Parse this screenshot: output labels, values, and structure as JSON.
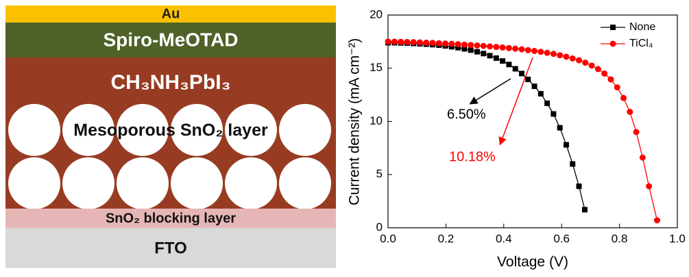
{
  "diagram": {
    "layers": [
      "Au",
      "Spiro-MeOTAD",
      "CH₃NH₃PbI₃",
      "Mesoporous SnO₂ layer",
      "SnO₂ blocking layer",
      "FTO"
    ]
  },
  "chart_data": {
    "type": "line",
    "xlabel": "Voltage (V)",
    "ylabel": "Current density (mA cm⁻²)",
    "xlim": [
      0,
      1
    ],
    "ylim": [
      0,
      20
    ],
    "xticks": [
      {
        "value": 0,
        "label": "0.0"
      },
      0.2,
      0.4,
      0.6,
      0.8,
      {
        "value": 1,
        "label": "1.0"
      }
    ],
    "yticks": [
      0,
      5,
      10,
      15,
      20
    ],
    "legend": "upper right",
    "series": [
      {
        "name": "None",
        "color": "#000000",
        "marker": "square",
        "x": [
          0,
          0.022,
          0.044,
          0.066,
          0.088,
          0.11,
          0.132,
          0.154,
          0.176,
          0.198,
          0.22,
          0.242,
          0.264,
          0.286,
          0.308,
          0.33,
          0.352,
          0.374,
          0.396,
          0.418,
          0.44,
          0.462,
          0.484,
          0.506,
          0.528,
          0.55,
          0.572,
          0.594,
          0.616,
          0.638,
          0.66,
          0.68
        ],
        "values": [
          17.4,
          17.4,
          17.38,
          17.36,
          17.33,
          17.3,
          17.26,
          17.22,
          17.17,
          17.1,
          17.02,
          16.93,
          16.82,
          16.7,
          16.55,
          16.38,
          16.18,
          15.95,
          15.68,
          15.35,
          14.95,
          14.5,
          13.95,
          13.3,
          12.6,
          11.7,
          10.7,
          9.4,
          7.8,
          6.0,
          3.9,
          1.7
        ]
      },
      {
        "name": "TiCl₄",
        "color": "#ff0000",
        "marker": "circle",
        "x": [
          0,
          0.022,
          0.044,
          0.066,
          0.088,
          0.11,
          0.132,
          0.154,
          0.176,
          0.198,
          0.22,
          0.242,
          0.264,
          0.286,
          0.308,
          0.33,
          0.352,
          0.374,
          0.396,
          0.418,
          0.44,
          0.462,
          0.484,
          0.506,
          0.528,
          0.55,
          0.572,
          0.594,
          0.616,
          0.638,
          0.66,
          0.682,
          0.704,
          0.726,
          0.748,
          0.77,
          0.792,
          0.814,
          0.836,
          0.858,
          0.88,
          0.902,
          0.93
        ],
        "values": [
          17.5,
          17.5,
          17.48,
          17.47,
          17.45,
          17.43,
          17.4,
          17.38,
          17.35,
          17.32,
          17.3,
          17.26,
          17.22,
          17.18,
          17.14,
          17.1,
          17.05,
          17.0,
          16.95,
          16.9,
          16.84,
          16.78,
          16.7,
          16.62,
          16.54,
          16.45,
          16.35,
          16.22,
          16.08,
          15.92,
          15.75,
          15.52,
          15.25,
          14.92,
          14.5,
          13.95,
          13.2,
          12.2,
          10.9,
          9.0,
          6.6,
          3.9,
          0.7
        ]
      }
    ],
    "annotations": [
      {
        "text": "6.50%",
        "color": "#000000"
      },
      {
        "text": "10.18%",
        "color": "#ff0000"
      }
    ]
  }
}
